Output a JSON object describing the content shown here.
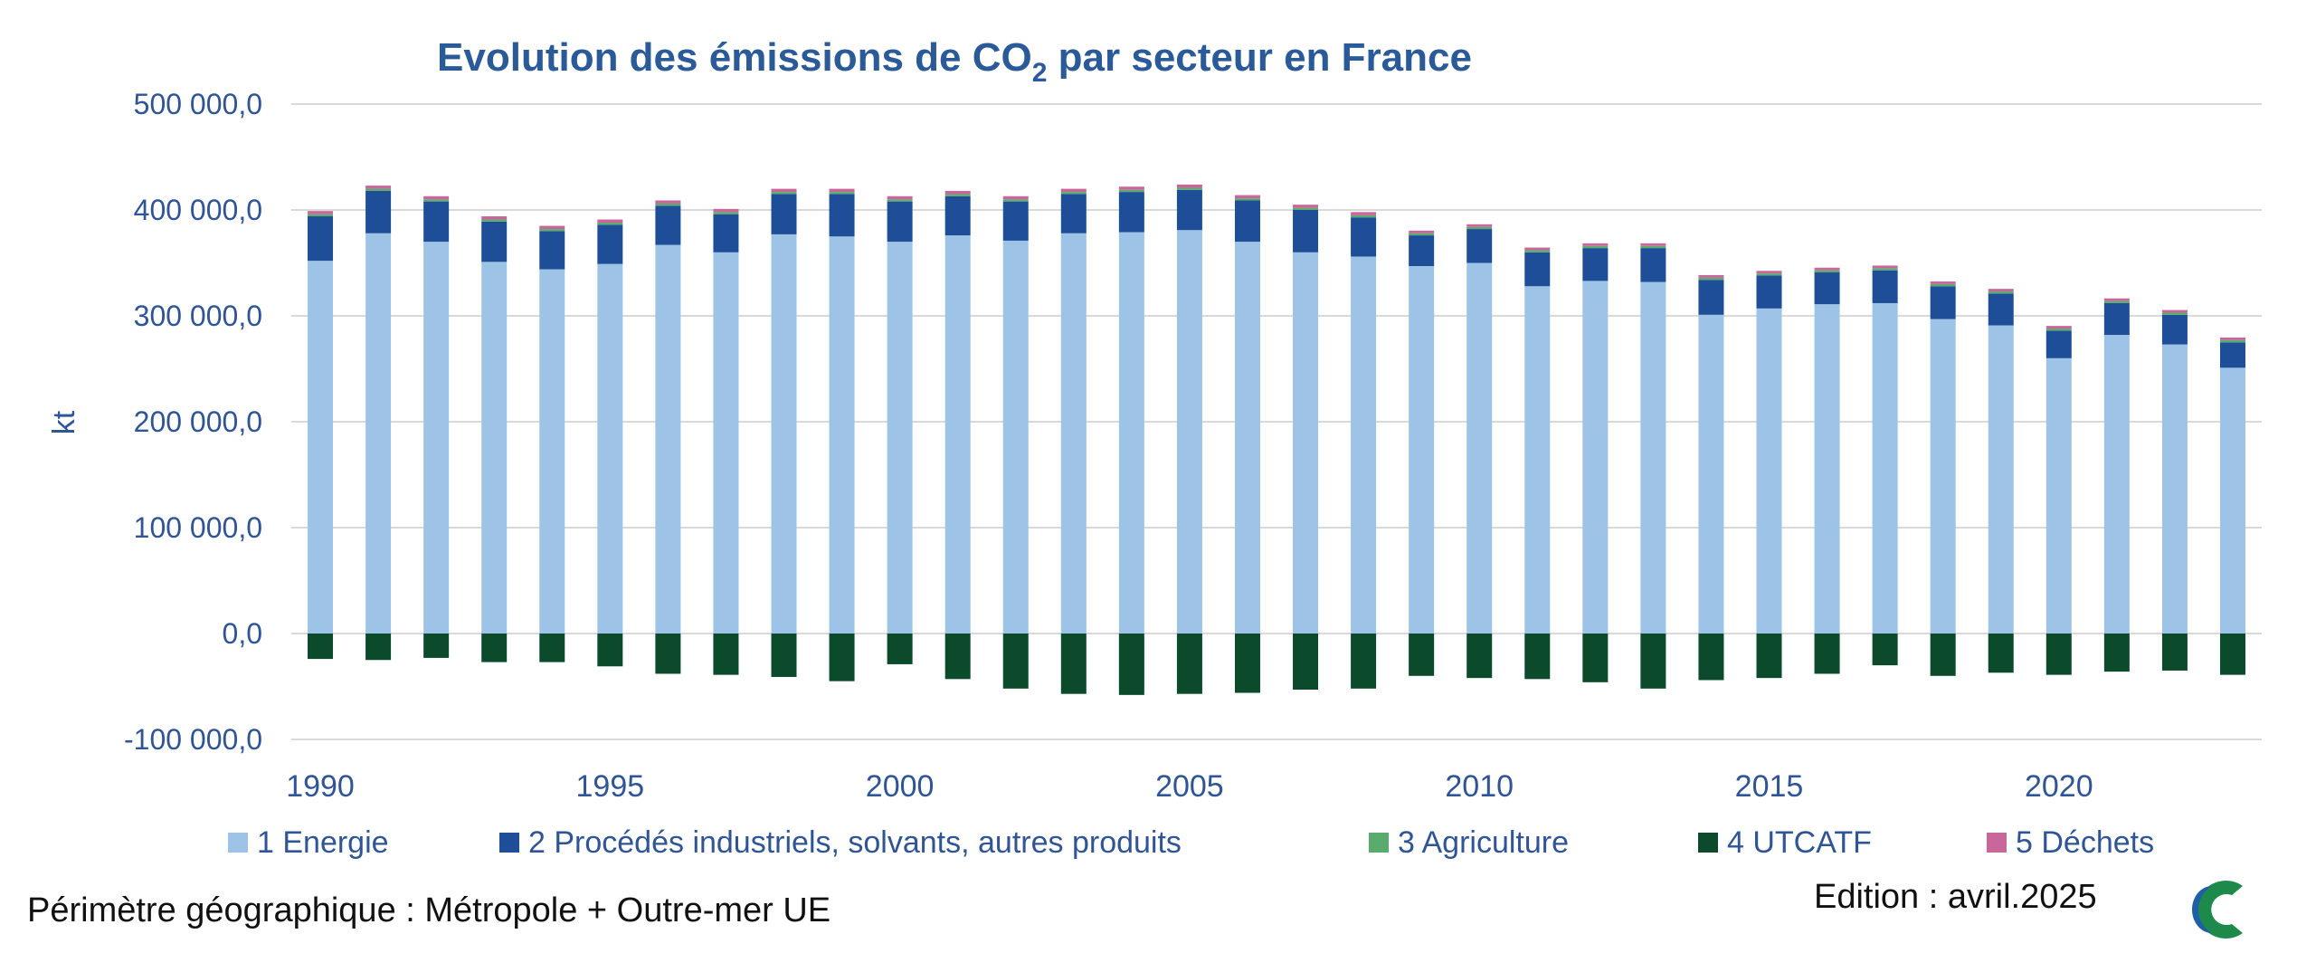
{
  "chart_data": {
    "type": "bar",
    "stacked": true,
    "title": "Evolution des émissions de CO",
    "title_subscript": "2",
    "title_suffix": " par secteur en France",
    "ylabel": "kt",
    "ylim": [
      -100000,
      500000
    ],
    "yticks": [
      -100000,
      0,
      100000,
      200000,
      300000,
      400000,
      500000
    ],
    "ytick_labels": [
      "-100 000,0",
      "0,0",
      "100 000,0",
      "200 000,0",
      "300 000,0",
      "400 000,0",
      "500 000,0"
    ],
    "xtick_labels": [
      "1990",
      "1995",
      "2000",
      "2005",
      "2010",
      "2015",
      "2020"
    ],
    "categories": [
      "1990",
      "1991",
      "1992",
      "1993",
      "1994",
      "1995",
      "1996",
      "1997",
      "1998",
      "1999",
      "2000",
      "2001",
      "2002",
      "2003",
      "2004",
      "2005",
      "2006",
      "2007",
      "2008",
      "2009",
      "2010",
      "2011",
      "2012",
      "2013",
      "2014",
      "2015",
      "2016",
      "2017",
      "2018",
      "2019",
      "2020",
      "2021",
      "2022",
      "2023"
    ],
    "grid": true,
    "legend_position": "bottom",
    "series": [
      {
        "name": "1 Energie",
        "color": "#9dc3e6",
        "values": [
          352000,
          378000,
          370000,
          351000,
          344000,
          349000,
          367000,
          360000,
          377000,
          375000,
          370000,
          376000,
          371000,
          378000,
          379000,
          381000,
          370000,
          360000,
          356000,
          347000,
          350000,
          328000,
          333000,
          332000,
          301000,
          307000,
          311000,
          312000,
          297000,
          291000,
          260000,
          282000,
          273000,
          251000
        ]
      },
      {
        "name": "2  Procédés industriels, solvants, autres produits",
        "color": "#1f4e99",
        "values": [
          42000,
          40000,
          38000,
          38000,
          36000,
          37000,
          37000,
          36000,
          38000,
          40000,
          38000,
          37000,
          37000,
          37000,
          38000,
          38000,
          39000,
          40000,
          37000,
          29000,
          32000,
          32000,
          31000,
          32000,
          33000,
          31000,
          30000,
          31000,
          31000,
          30000,
          26000,
          30000,
          28000,
          24000
        ]
      },
      {
        "name": "3  Agriculture",
        "color": "#5aab6e",
        "values": [
          2000,
          2000,
          2000,
          2000,
          2000,
          2000,
          2000,
          2000,
          2000,
          2000,
          2000,
          2000,
          2000,
          2000,
          2000,
          2000,
          2000,
          2000,
          2000,
          2000,
          2000,
          2000,
          2000,
          2000,
          2000,
          2000,
          2000,
          2000,
          2000,
          2000,
          2000,
          2000,
          2000,
          2000
        ]
      },
      {
        "name": "4  UTCATF",
        "color": "#0b4a2a",
        "values": [
          -24000,
          -25000,
          -23000,
          -27000,
          -27000,
          -31000,
          -38000,
          -39000,
          -41000,
          -45000,
          -29000,
          -43000,
          -52000,
          -57000,
          -58000,
          -57000,
          -56000,
          -53000,
          -52000,
          -40000,
          -42000,
          -43000,
          -46000,
          -52000,
          -44000,
          -42000,
          -38000,
          -30000,
          -40000,
          -37000,
          -39000,
          -36000,
          -35000,
          -39000
        ]
      },
      {
        "name": "5  Déchets",
        "color": "#c9679a",
        "values": [
          3000,
          3000,
          3000,
          3000,
          3000,
          3000,
          3000,
          3000,
          3000,
          3000,
          3000,
          3000,
          3000,
          3000,
          3000,
          3000,
          3000,
          3000,
          3000,
          2500,
          2500,
          2500,
          2500,
          2500,
          2500,
          2500,
          2500,
          2500,
          2500,
          2500,
          2500,
          2500,
          2500,
          2500
        ]
      }
    ]
  },
  "footer": {
    "perimeter": "Périmètre géographique : Métropole + Outre-mer UE",
    "edition": "Edition : avril.2025"
  },
  "colors": {
    "title": "#2a5a98",
    "axis_text": "#2f5597",
    "grid": "#d9d9d9",
    "logo_blue": "#1f5fa8",
    "logo_green": "#1d8a4c"
  },
  "logo_icon": "c-logo-icon"
}
